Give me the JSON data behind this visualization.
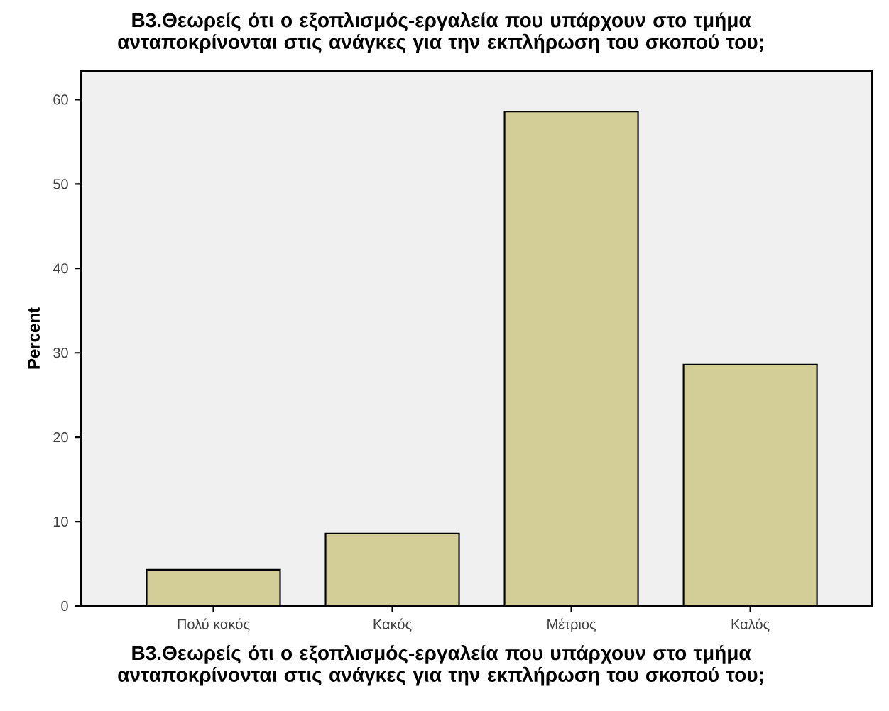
{
  "chart_data": {
    "type": "bar",
    "title": "B3.Θεωρείς ότι ο εξοπλισμός-εργαλεία που υπάρχουν στο τμήμα ανταποκρίνονται στις ανάγκες για την εκπλήρωση του σκοπού του;",
    "xlabel": "B3.Θεωρείς ότι ο εξοπλισμός-εργαλεία που υπάρχουν στο τμήμα ανταποκρίνονται στις ανάγκες για την εκπλήρωση του σκοπού του;",
    "ylabel": "Percent",
    "categories": [
      "Πολύ κακός",
      "Κακός",
      "Μέτριος",
      "Καλός"
    ],
    "values": [
      4.3,
      8.6,
      58.6,
      28.6
    ],
    "color": "#d3ce97",
    "ylim": [
      0,
      63.4
    ],
    "yticks": [
      0,
      10,
      20,
      30,
      40,
      50,
      60
    ]
  }
}
